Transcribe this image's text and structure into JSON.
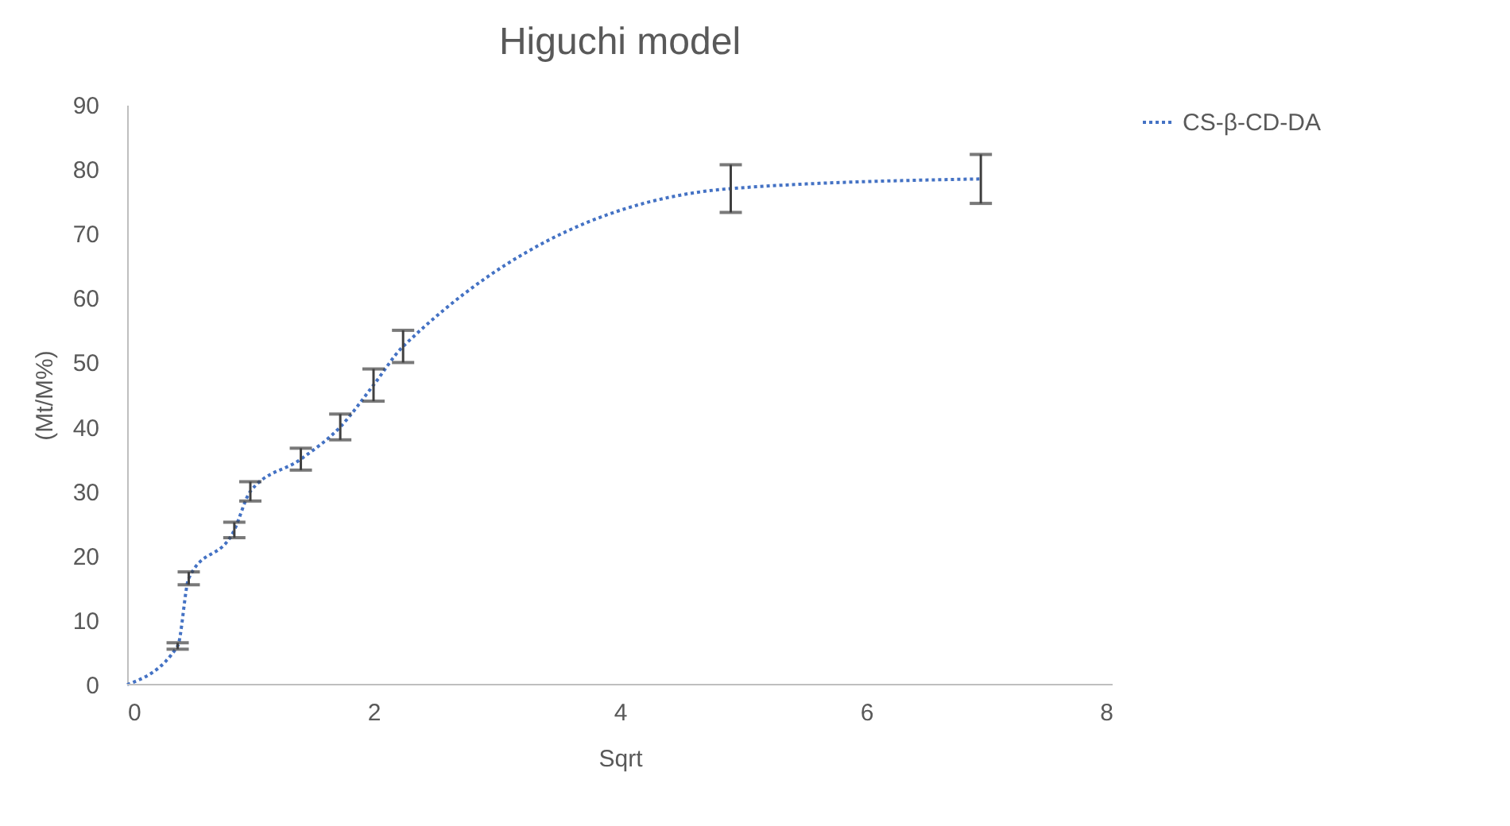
{
  "chart_data": {
    "type": "line",
    "title": "Higuchi model",
    "xlabel": "Sqrt",
    "ylabel": "(Mt/M%)",
    "x": [
      0,
      0.41,
      0.5,
      0.87,
      1,
      1.41,
      1.73,
      2,
      2.24,
      4.9,
      6.93
    ],
    "series": [
      {
        "name": "CS-β-CD-DA",
        "color": "#4472c4",
        "values": [
          0,
          6,
          16.5,
          24,
          30,
          35,
          40,
          46.5,
          52.5,
          77,
          78.5
        ],
        "errors": [
          null,
          0.5,
          1,
          1.2,
          1.5,
          1.7,
          2,
          2.5,
          2.5,
          3.7,
          3.8
        ]
      }
    ],
    "xlim": [
      0,
      8
    ],
    "xticks": [
      0,
      2,
      4,
      6,
      8
    ],
    "ylim": [
      0,
      90
    ],
    "yticks": [
      0,
      10,
      20,
      30,
      40,
      50,
      60,
      70,
      80,
      90
    ],
    "grid": false,
    "legend": "right",
    "marker": "none",
    "line_style": "dotted"
  }
}
